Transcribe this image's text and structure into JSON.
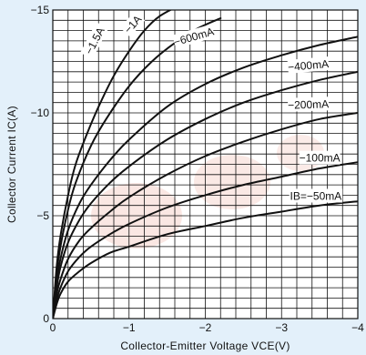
{
  "chart_data": {
    "type": "line",
    "title": "",
    "xlabel": "Collector-Emitter Voltage VCE(V)",
    "ylabel": "Collector Current IC(A)",
    "xlim": [
      0,
      -4
    ],
    "ylim": [
      0,
      -15
    ],
    "x_ticks": [
      "0",
      "−1",
      "−2",
      "−3",
      "−4"
    ],
    "y_ticks": [
      "0",
      "−5",
      "−10",
      "−15"
    ],
    "grid": true,
    "legend": "none",
    "series": [
      {
        "name": "−1.5A",
        "x": [
          0,
          -0.05,
          -0.1,
          -0.2,
          -0.3,
          -0.45,
          -0.6,
          -0.8,
          -1.0,
          -1.2,
          -1.4,
          -1.7
        ],
        "y": [
          0,
          -2.5,
          -4.0,
          -6.0,
          -7.5,
          -9.0,
          -10.3,
          -11.8,
          -13.0,
          -14.0,
          -14.7,
          -15.3
        ]
      },
      {
        "name": "−1A",
        "x": [
          0,
          -0.05,
          -0.1,
          -0.2,
          -0.3,
          -0.5,
          -0.7,
          -1.0,
          -1.3,
          -1.6,
          -1.9,
          -2.2
        ],
        "y": [
          0,
          -2.2,
          -3.5,
          -5.3,
          -6.6,
          -8.4,
          -9.7,
          -11.3,
          -12.5,
          -13.4,
          -14.1,
          -14.6
        ]
      },
      {
        "name": "−600mA",
        "x": [
          0,
          -0.05,
          -0.1,
          -0.2,
          -0.35,
          -0.5,
          -0.75,
          -1.0,
          -1.5,
          -2.0,
          -2.5,
          -3.0,
          -3.5,
          -4.0
        ],
        "y": [
          0,
          -1.8,
          -2.9,
          -4.3,
          -5.6,
          -6.5,
          -7.7,
          -8.7,
          -10.3,
          -11.4,
          -12.2,
          -12.8,
          -13.3,
          -13.7
        ]
      },
      {
        "name": "−400mA",
        "x": [
          0,
          -0.05,
          -0.1,
          -0.2,
          -0.35,
          -0.5,
          -0.75,
          -1.0,
          -1.5,
          -2.0,
          -2.5,
          -3.0,
          -3.5,
          -4.0
        ],
        "y": [
          0,
          -1.5,
          -2.5,
          -3.7,
          -4.8,
          -5.6,
          -6.6,
          -7.4,
          -8.7,
          -9.7,
          -10.5,
          -11.1,
          -11.6,
          -12.0
        ]
      },
      {
        "name": "−200mA",
        "x": [
          0,
          -0.05,
          -0.1,
          -0.2,
          -0.35,
          -0.5,
          -0.75,
          -1.0,
          -1.5,
          -2.0,
          -2.5,
          -3.0,
          -3.5,
          -4.0
        ],
        "y": [
          0,
          -1.2,
          -1.9,
          -2.9,
          -3.8,
          -4.4,
          -5.2,
          -5.9,
          -7.0,
          -7.9,
          -8.6,
          -9.2,
          -9.7,
          -10.0
        ]
      },
      {
        "name": "−100mA",
        "x": [
          0,
          -0.05,
          -0.1,
          -0.2,
          -0.35,
          -0.5,
          -0.75,
          -1.0,
          -1.5,
          -2.0,
          -2.5,
          -3.0,
          -3.5,
          -4.0
        ],
        "y": [
          0,
          -0.9,
          -1.5,
          -2.3,
          -3.0,
          -3.5,
          -4.1,
          -4.6,
          -5.4,
          -6.0,
          -6.5,
          -6.9,
          -7.3,
          -7.6
        ]
      },
      {
        "name": "IB=−50mA",
        "x": [
          0,
          -0.05,
          -0.1,
          -0.2,
          -0.35,
          -0.5,
          -0.75,
          -1.0,
          -1.5,
          -2.0,
          -2.5,
          -3.0,
          -3.5,
          -4.0
        ],
        "y": [
          0,
          -0.7,
          -1.2,
          -1.8,
          -2.3,
          -2.7,
          -3.2,
          -3.5,
          -4.1,
          -4.5,
          -4.9,
          -5.2,
          -5.5,
          -5.7
        ]
      }
    ],
    "labels": [
      {
        "text": "−1.5A",
        "x": -0.55,
        "y": -13.5,
        "angle": -62
      },
      {
        "text": "−1A",
        "x": -1.05,
        "y": -14.3,
        "angle": -48
      },
      {
        "text": "−600mA",
        "x": -1.85,
        "y": -13.7,
        "angle": -16
      },
      {
        "text": "−400mA",
        "x": -3.35,
        "y": -12.3,
        "angle": -5
      },
      {
        "text": "−200mA",
        "x": -3.35,
        "y": -10.4,
        "angle": -2
      },
      {
        "text": "−100mA",
        "x": -3.5,
        "y": -7.8,
        "angle": 0
      },
      {
        "text": "IB=−50mA",
        "x": -3.45,
        "y": -5.95,
        "angle": 0
      }
    ]
  }
}
